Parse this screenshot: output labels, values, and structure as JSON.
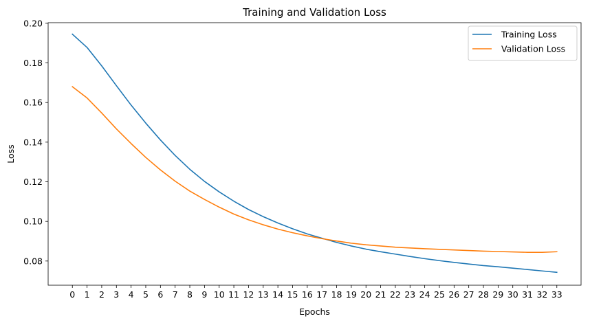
{
  "chart_data": {
    "type": "line",
    "title": "Training and Validation Loss",
    "xlabel": "Epochs",
    "ylabel": "Loss",
    "x": [
      0,
      1,
      2,
      3,
      4,
      5,
      6,
      7,
      8,
      9,
      10,
      11,
      12,
      13,
      14,
      15,
      16,
      17,
      18,
      19,
      20,
      21,
      22,
      23,
      24,
      25,
      26,
      27,
      28,
      29,
      30,
      31,
      32,
      33
    ],
    "xticks": [
      "0",
      "1",
      "2",
      "3",
      "4",
      "5",
      "6",
      "7",
      "8",
      "9",
      "10",
      "11",
      "12",
      "13",
      "14",
      "15",
      "16",
      "17",
      "18",
      "19",
      "20",
      "21",
      "22",
      "23",
      "24",
      "25",
      "26",
      "27",
      "28",
      "29",
      "30",
      "31",
      "32",
      "33"
    ],
    "yticks": [
      0.08,
      0.1,
      0.12,
      0.14,
      0.16,
      0.18,
      0.2
    ],
    "ytick_labels": [
      "0.08",
      "0.10",
      "0.12",
      "0.14",
      "0.16",
      "0.18",
      "0.20"
    ],
    "xlim": [
      -1.65,
      34.65
    ],
    "ylim": [
      0.0678,
      0.2003
    ],
    "grid": false,
    "legend_position": "top-right",
    "series": [
      {
        "name": "Training Loss",
        "color": "#1f77b4",
        "values": [
          0.1945,
          0.1878,
          0.1785,
          0.1685,
          0.1587,
          0.1496,
          0.1411,
          0.1333,
          0.1263,
          0.1202,
          0.1149,
          0.1102,
          0.106,
          0.1024,
          0.0992,
          0.0963,
          0.0937,
          0.0915,
          0.0894,
          0.0876,
          0.086,
          0.0847,
          0.0835,
          0.0823,
          0.0812,
          0.0802,
          0.0793,
          0.0785,
          0.0777,
          0.0771,
          0.0764,
          0.0757,
          0.075,
          0.0743
        ]
      },
      {
        "name": "Validation Loss",
        "color": "#ff7f0e",
        "values": [
          0.168,
          0.1623,
          0.1547,
          0.1467,
          0.1393,
          0.1323,
          0.126,
          0.1203,
          0.1153,
          0.1111,
          0.1072,
          0.1037,
          0.1008,
          0.0983,
          0.0961,
          0.0943,
          0.0927,
          0.0913,
          0.0901,
          0.089,
          0.0882,
          0.0876,
          0.087,
          0.0866,
          0.0862,
          0.0859,
          0.0856,
          0.0853,
          0.085,
          0.0848,
          0.0846,
          0.0844,
          0.0844,
          0.0847
        ]
      }
    ]
  }
}
